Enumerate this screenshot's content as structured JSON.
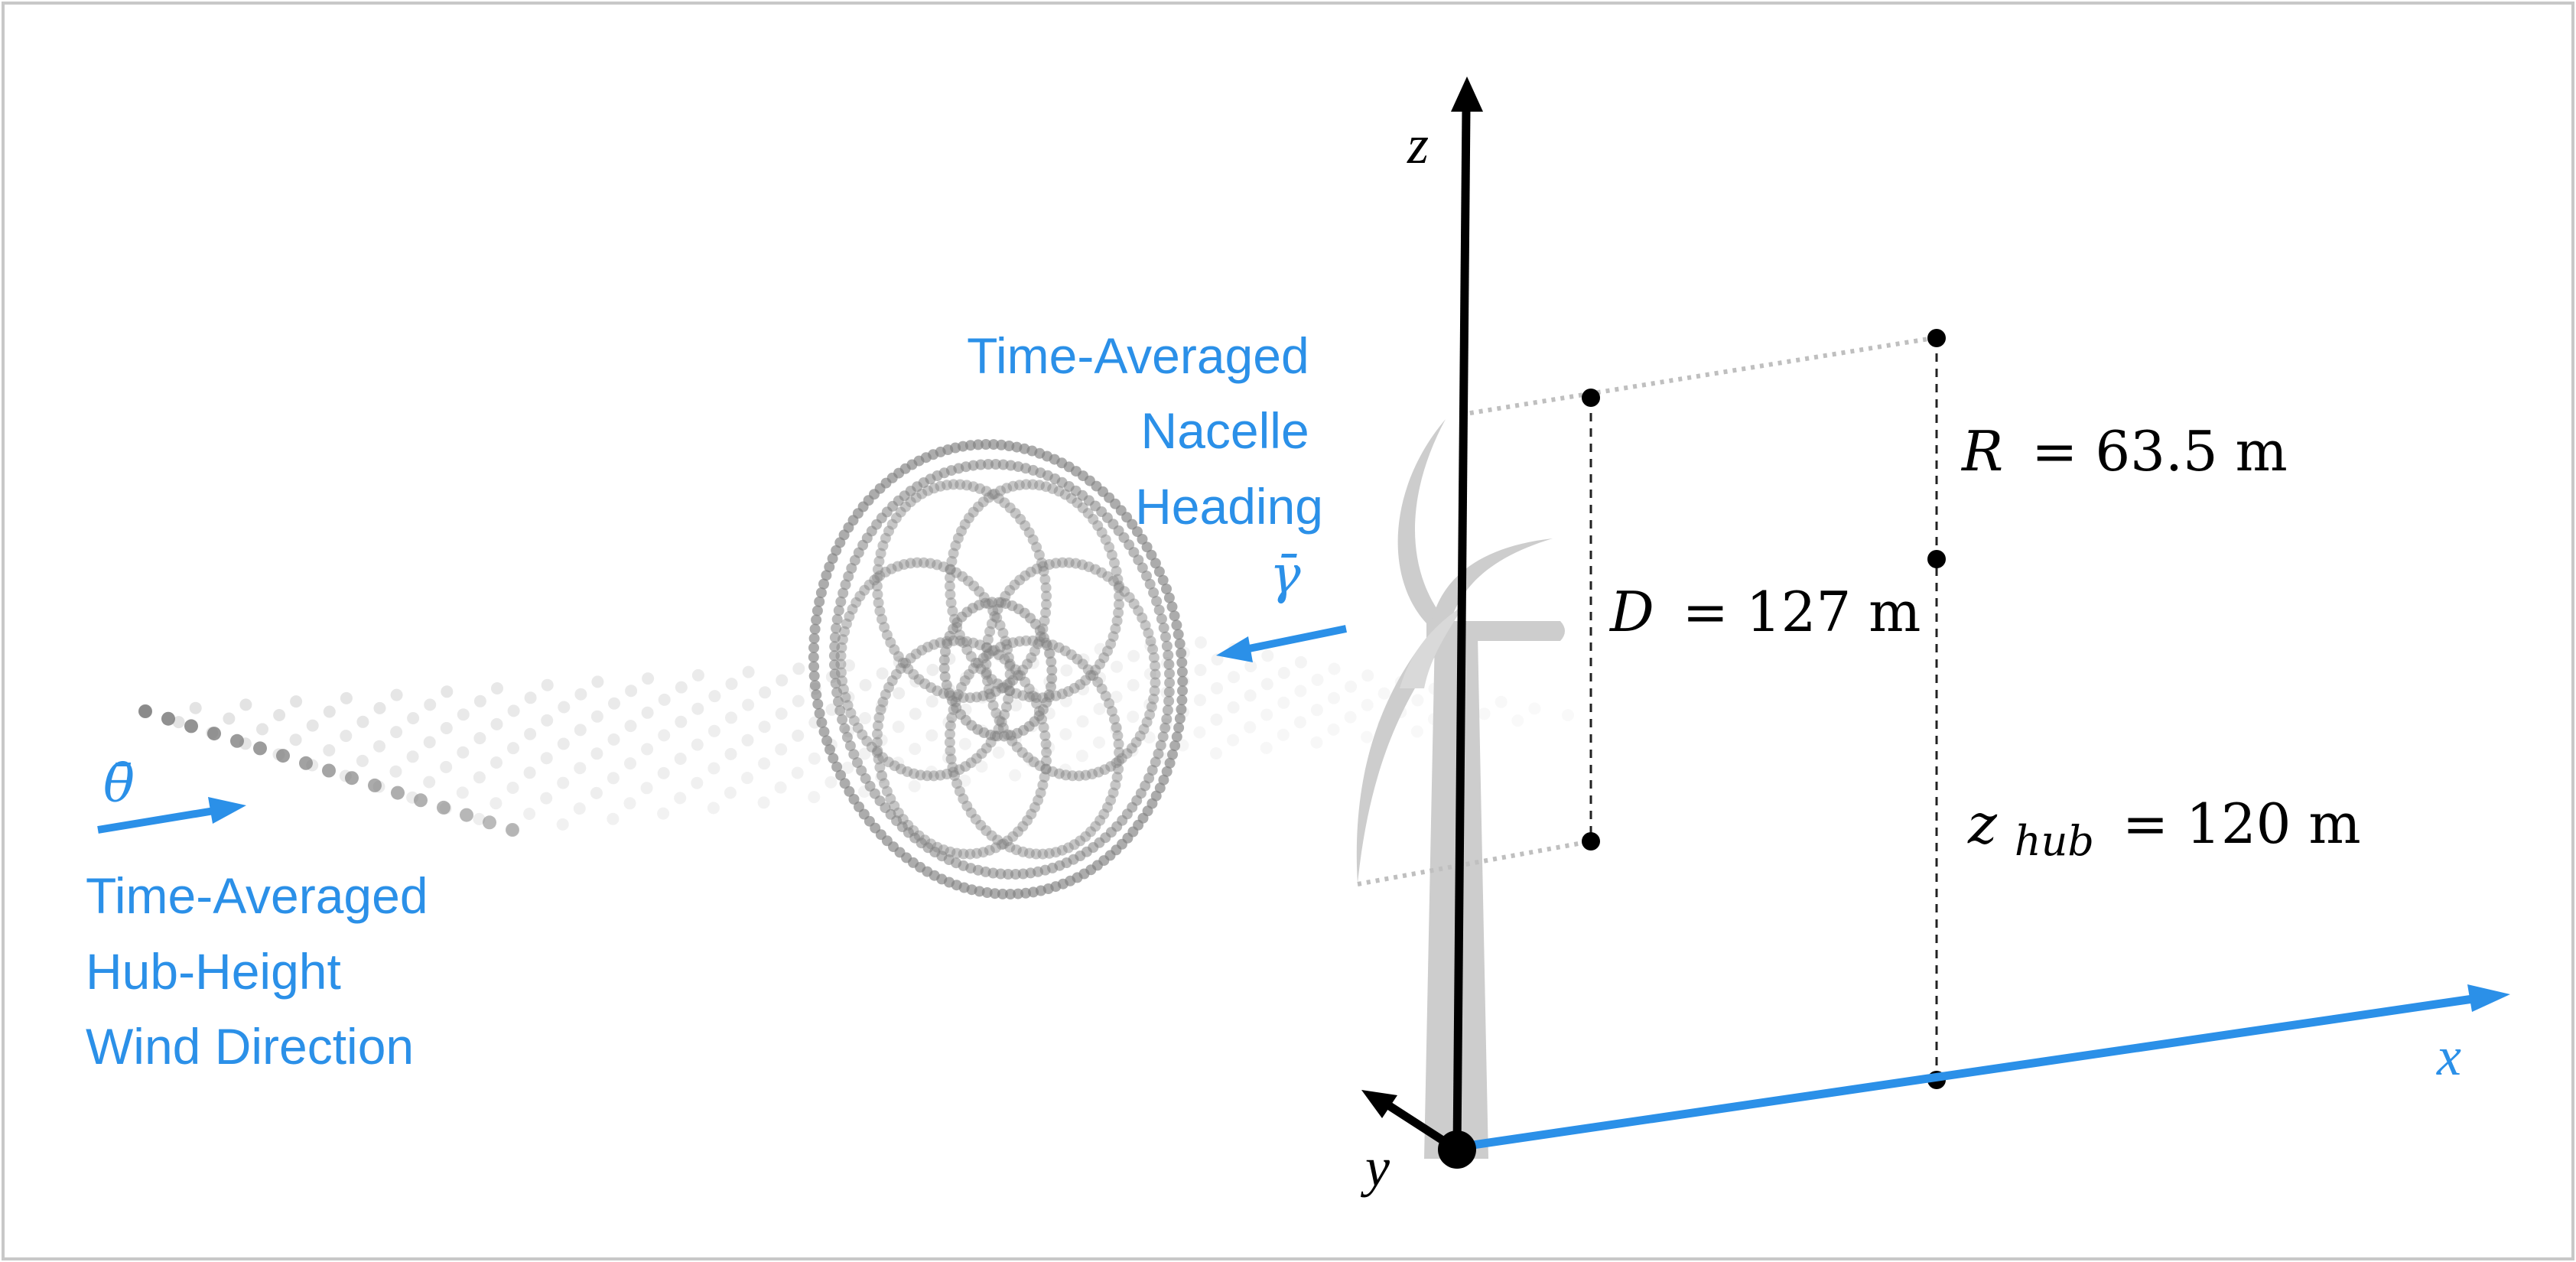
{
  "colors": {
    "accent_blue": "#2b90e8",
    "turbine_grey": "#cdcdcd",
    "particle_grey": "#8a8a8a",
    "axis_black": "#000000"
  },
  "axes": {
    "z_label": "z",
    "y_label": "y",
    "x_label": "x"
  },
  "labels": {
    "nacelle": [
      "Time-Averaged",
      "Nacelle",
      "Heading"
    ],
    "nacelle_symbol": "γ̄",
    "wind": [
      "Time-Averaged",
      "Hub-Height",
      "Wind Direction"
    ],
    "wind_symbol": "θ̄"
  },
  "dimensions": {
    "diameter": {
      "symbol": "D",
      "value": "= 127 m"
    },
    "radius": {
      "symbol": "R",
      "value": "= 63.5 m"
    },
    "hub_height": {
      "symbol": "z",
      "subscript": "hub",
      "value": "= 120 m"
    }
  },
  "icons": {
    "turbine": "wind-turbine-icon",
    "wake": "wake-particle-trail-icon"
  }
}
